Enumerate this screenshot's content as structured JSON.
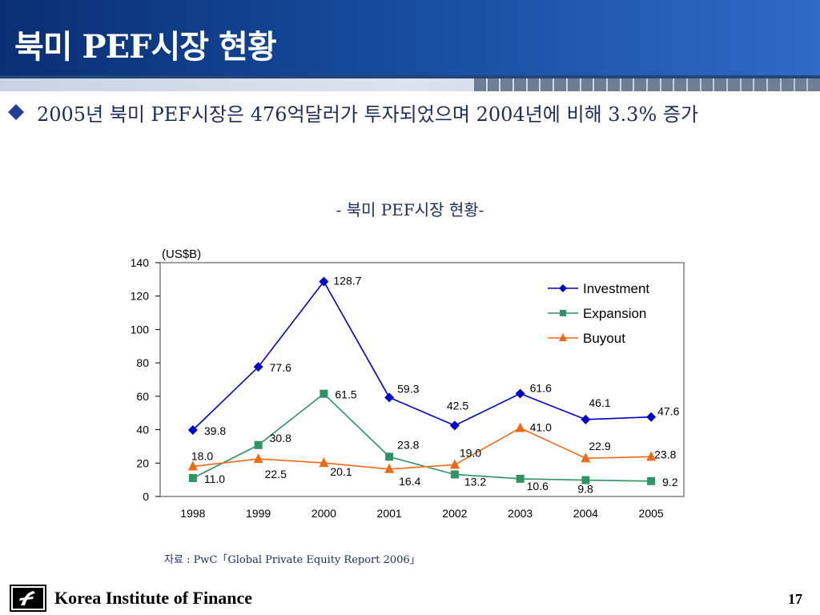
{
  "slide": {
    "title": "북미 PEF시장 현황",
    "bullet": "2005년 북미 PEF시장은 476억달러가 투자되었으며 2004년에 비해 3.3% 증가",
    "chart_subtitle": "- 북미 PEF시장 현황-",
    "source": "자료 : PwC「Global Private Equity Report 2006」",
    "footer_org": "Korea Institute of Finance",
    "page_number": "17",
    "colors": {
      "title_bar": "#154a9b",
      "text": "#1c2d5e",
      "bullet_marker": "#1f3f9a"
    }
  },
  "chart_data": {
    "type": "line",
    "unit_label": "(US$B)",
    "categories": [
      "1998",
      "1999",
      "2000",
      "2001",
      "2002",
      "2003",
      "2004",
      "2005"
    ],
    "ylim": [
      0,
      140
    ],
    "yticks": [
      0,
      20,
      40,
      60,
      80,
      100,
      120,
      140
    ],
    "grid": false,
    "legend_position": "top-right",
    "series": [
      {
        "name": "Investment",
        "color": "#0000cc",
        "marker": "diamond",
        "values": [
          39.8,
          77.6,
          128.7,
          59.3,
          42.5,
          61.6,
          46.1,
          47.6
        ],
        "labels": [
          "39.8",
          "77.6",
          "128.7",
          "59.3",
          "42.5",
          "61.6",
          "46.1",
          "47.6"
        ]
      },
      {
        "name": "Expansion",
        "color": "#2e9466",
        "marker": "square",
        "values": [
          11.0,
          30.8,
          61.5,
          23.8,
          13.2,
          10.6,
          9.8,
          9.2
        ],
        "labels": [
          "11.0",
          "30.8",
          "61.5",
          "23.8",
          "13.2",
          "10.6",
          "9.8",
          "9.2"
        ]
      },
      {
        "name": "Buyout",
        "color": "#f06a14",
        "marker": "triangle",
        "values": [
          18.0,
          22.5,
          20.1,
          16.4,
          19.0,
          41.0,
          22.9,
          23.8
        ],
        "labels": [
          "18.0",
          "22.5",
          "20.1",
          "16.4",
          "19.0",
          "41.0",
          "22.9",
          "23.8"
        ]
      }
    ]
  }
}
